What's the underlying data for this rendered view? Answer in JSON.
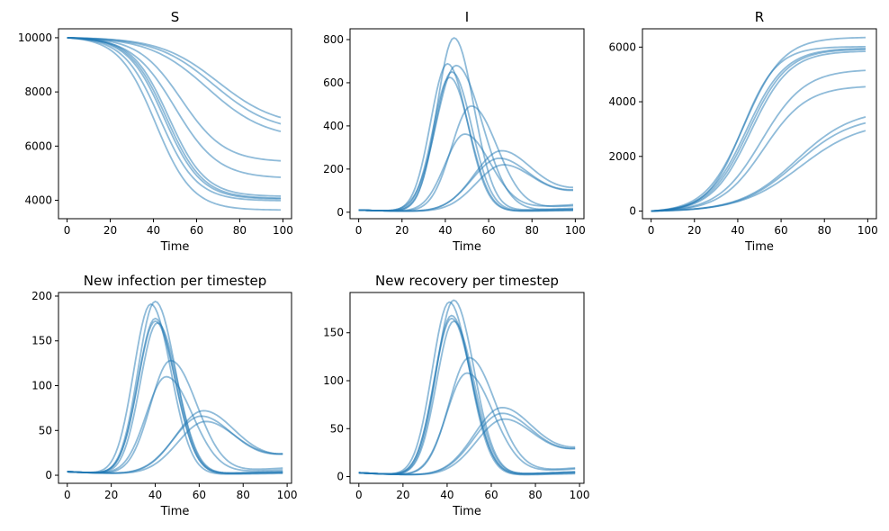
{
  "chart_data": [
    {
      "type": "line",
      "title": "S",
      "xlabel": "Time",
      "ylabel": "",
      "xlim": [
        -4,
        104
      ],
      "ylim": [
        3320,
        10330
      ],
      "xticks": [
        0,
        20,
        40,
        60,
        80,
        100
      ],
      "yticks": [
        4000,
        6000,
        8000,
        10000
      ],
      "line_color": "#1f77b4",
      "line_alpha": 0.5,
      "kind": "S",
      "series": [
        {
          "i0": 10,
          "peak_t": 38,
          "r_final": 6363,
          "peak_val": 0
        },
        {
          "i0": 10,
          "peak_t": 40,
          "r_final": 6020,
          "peak_val": 0
        },
        {
          "i0": 10,
          "peak_t": 42,
          "r_final": 5960,
          "peak_val": 0
        },
        {
          "i0": 10,
          "peak_t": 43,
          "r_final": 5930,
          "peak_val": 0
        },
        {
          "i0": 10,
          "peak_t": 44,
          "r_final": 5860,
          "peak_val": 0
        },
        {
          "i0": 10,
          "peak_t": 47,
          "r_final": 5190,
          "peak_val": 0
        },
        {
          "i0": 10,
          "peak_t": 50,
          "r_final": 4590,
          "peak_val": 0
        },
        {
          "i0": 10,
          "peak_t": 62,
          "r_final": 3740,
          "peak_val": 0
        },
        {
          "i0": 10,
          "peak_t": 65,
          "r_final": 3500,
          "peak_val": 0
        },
        {
          "i0": 10,
          "peak_t": 67,
          "r_final": 3290,
          "peak_val": 0
        }
      ]
    },
    {
      "type": "line",
      "title": "I",
      "xlabel": "Time",
      "ylabel": "",
      "xlim": [
        -4,
        104
      ],
      "ylim": [
        -30,
        850
      ],
      "xticks": [
        0,
        20,
        40,
        60,
        80,
        100
      ],
      "yticks": [
        0,
        200,
        400,
        600,
        800
      ],
      "line_color": "#1f77b4",
      "line_alpha": 0.5,
      "kind": "I",
      "series": [
        {
          "peak_t": 44,
          "peak_val": 808,
          "final": 18
        },
        {
          "peak_t": 41,
          "peak_val": 688,
          "final": 10
        },
        {
          "peak_t": 45,
          "peak_val": 680,
          "final": 14
        },
        {
          "peak_t": 43,
          "peak_val": 650,
          "final": 12
        },
        {
          "peak_t": 42,
          "peak_val": 625,
          "final": 8
        },
        {
          "peak_t": 52,
          "peak_val": 492,
          "final": 30
        },
        {
          "peak_t": 49,
          "peak_val": 362,
          "final": 35
        },
        {
          "peak_t": 66,
          "peak_val": 285,
          "final": 95
        },
        {
          "peak_t": 65,
          "peak_val": 250,
          "final": 90
        },
        {
          "peak_t": 67,
          "peak_val": 220,
          "final": 85
        }
      ]
    },
    {
      "type": "line",
      "title": "R",
      "xlabel": "Time",
      "ylabel": "",
      "xlim": [
        -4,
        104
      ],
      "ylim": [
        -280,
        6670
      ],
      "xticks": [
        0,
        20,
        40,
        60,
        80,
        100
      ],
      "yticks": [
        0,
        2000,
        4000,
        6000
      ],
      "line_color": "#1f77b4",
      "line_alpha": 0.5,
      "kind": "R",
      "series": [
        {
          "mid_t": 43,
          "r_final": 6363,
          "width": 9
        },
        {
          "mid_t": 42,
          "r_final": 6020,
          "width": 8
        },
        {
          "mid_t": 44,
          "r_final": 5960,
          "width": 9
        },
        {
          "mid_t": 45,
          "r_final": 5930,
          "width": 9
        },
        {
          "mid_t": 46,
          "r_final": 5860,
          "width": 9
        },
        {
          "mid_t": 51,
          "r_final": 5190,
          "width": 10
        },
        {
          "mid_t": 52,
          "r_final": 4590,
          "width": 10
        },
        {
          "mid_t": 67,
          "r_final": 3740,
          "width": 13
        },
        {
          "mid_t": 67,
          "r_final": 3500,
          "width": 13
        },
        {
          "mid_t": 69,
          "r_final": 3290,
          "width": 14
        }
      ]
    },
    {
      "type": "line",
      "title": "New infection per timestep",
      "xlabel": "Time",
      "ylabel": "",
      "xlim": [
        -4,
        102
      ],
      "ylim": [
        -9,
        204
      ],
      "xticks": [
        0,
        20,
        40,
        60,
        80,
        100
      ],
      "yticks": [
        0,
        50,
        100,
        150,
        200
      ],
      "line_color": "#1f77b4",
      "line_alpha": 0.5,
      "kind": "bump",
      "series": [
        {
          "peak_t": 40,
          "peak_val": 194,
          "final": 4
        },
        {
          "peak_t": 38,
          "peak_val": 191,
          "final": 2
        },
        {
          "peak_t": 40,
          "peak_val": 175,
          "final": 3
        },
        {
          "peak_t": 40,
          "peak_val": 172,
          "final": 3
        },
        {
          "peak_t": 41,
          "peak_val": 170,
          "final": 4
        },
        {
          "peak_t": 47,
          "peak_val": 128,
          "final": 8
        },
        {
          "peak_t": 45,
          "peak_val": 110,
          "final": 6
        },
        {
          "peak_t": 62,
          "peak_val": 72,
          "final": 20
        },
        {
          "peak_t": 61,
          "peak_val": 66,
          "final": 21
        },
        {
          "peak_t": 63,
          "peak_val": 60,
          "final": 21
        }
      ]
    },
    {
      "type": "line",
      "title": "New recovery per timestep",
      "xlabel": "Time",
      "ylabel": "",
      "xlim": [
        -4,
        102
      ],
      "ylim": [
        -7,
        192
      ],
      "xticks": [
        0,
        20,
        40,
        60,
        80,
        100
      ],
      "yticks": [
        0,
        50,
        100,
        150
      ],
      "line_color": "#1f77b4",
      "line_alpha": 0.5,
      "kind": "bump",
      "series": [
        {
          "peak_t": 43,
          "peak_val": 184,
          "final": 5
        },
        {
          "peak_t": 41,
          "peak_val": 182,
          "final": 3
        },
        {
          "peak_t": 42,
          "peak_val": 168,
          "final": 4
        },
        {
          "peak_t": 42,
          "peak_val": 165,
          "final": 4
        },
        {
          "peak_t": 43,
          "peak_val": 162,
          "final": 5
        },
        {
          "peak_t": 50,
          "peak_val": 124,
          "final": 9
        },
        {
          "peak_t": 49,
          "peak_val": 108,
          "final": 8
        },
        {
          "peak_t": 65,
          "peak_val": 72,
          "final": 26
        },
        {
          "peak_t": 65,
          "peak_val": 66,
          "final": 25
        },
        {
          "peak_t": 66,
          "peak_val": 60,
          "final": 25
        }
      ]
    }
  ]
}
